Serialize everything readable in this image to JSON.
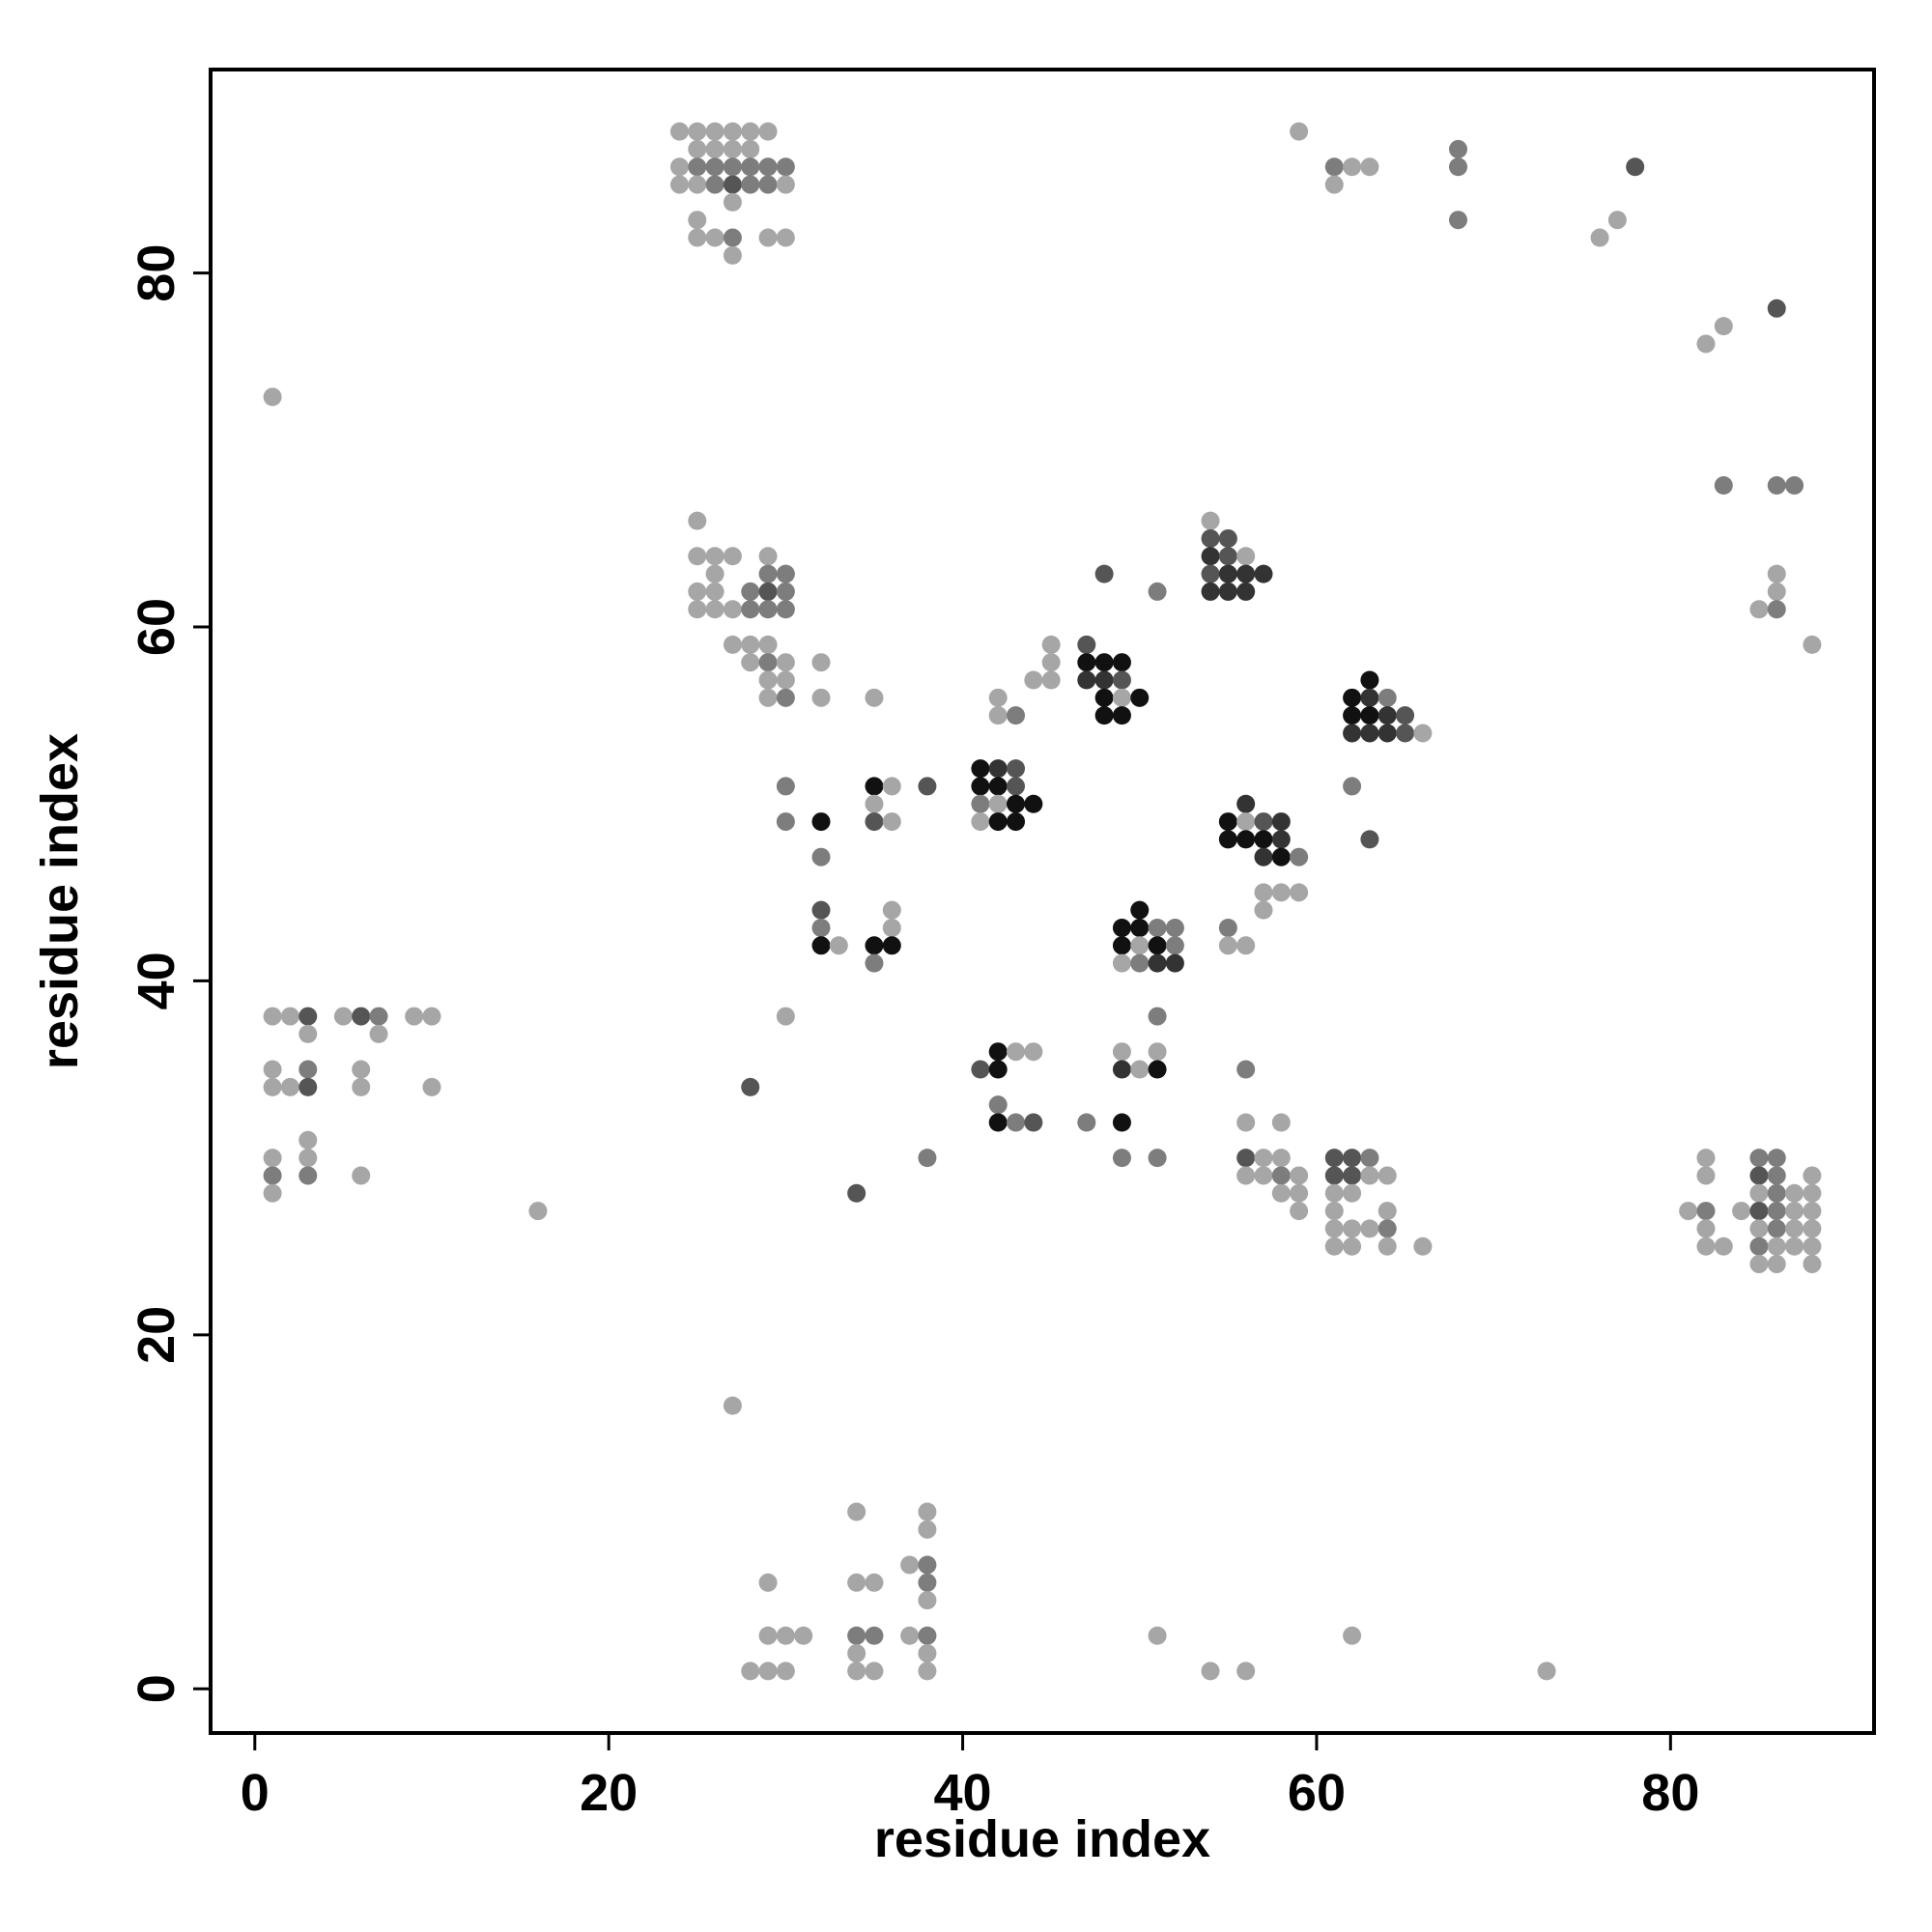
{
  "chart_data": {
    "type": "scatter",
    "title": "",
    "xlabel": "residue index",
    "ylabel": "residue index",
    "xlim": [
      -2.5,
      91.5
    ],
    "ylim": [
      -2.5,
      91.5
    ],
    "x_ticks": [
      0,
      20,
      40,
      60,
      80
    ],
    "y_ticks": [
      0,
      20,
      40,
      60,
      80
    ],
    "grid": false,
    "legend": "none",
    "point_color_scale": {
      "light": "#a6a6a6",
      "mid": "#7d7d7d",
      "dark": "#555555",
      "darker": "#333333",
      "black": "#111111"
    },
    "points": [
      [
        24,
        88,
        1
      ],
      [
        25,
        88,
        1
      ],
      [
        26,
        88,
        1
      ],
      [
        27,
        88,
        1
      ],
      [
        28,
        88,
        1
      ],
      [
        29,
        88,
        1
      ],
      [
        25,
        87,
        1
      ],
      [
        26,
        87,
        1
      ],
      [
        27,
        87,
        1
      ],
      [
        28,
        87,
        1
      ],
      [
        24,
        86,
        1
      ],
      [
        25,
        86,
        2
      ],
      [
        26,
        86,
        2
      ],
      [
        27,
        86,
        2
      ],
      [
        28,
        86,
        2
      ],
      [
        29,
        86,
        2
      ],
      [
        30,
        86,
        2
      ],
      [
        24,
        85,
        1
      ],
      [
        25,
        85,
        1
      ],
      [
        26,
        85,
        2
      ],
      [
        27,
        85,
        3
      ],
      [
        28,
        85,
        2
      ],
      [
        29,
        85,
        2
      ],
      [
        30,
        85,
        1
      ],
      [
        27,
        84,
        1
      ],
      [
        25,
        83,
        1
      ],
      [
        25,
        82,
        1
      ],
      [
        26,
        82,
        1
      ],
      [
        27,
        82,
        2
      ],
      [
        29,
        82,
        1
      ],
      [
        30,
        82,
        1
      ],
      [
        27,
        81,
        1
      ],
      [
        59,
        88,
        1
      ],
      [
        61,
        86,
        2
      ],
      [
        62,
        86,
        1
      ],
      [
        63,
        86,
        1
      ],
      [
        61,
        85,
        1
      ],
      [
        68,
        87,
        2
      ],
      [
        68,
        86,
        2
      ],
      [
        68,
        83,
        2
      ],
      [
        78,
        86,
        3
      ],
      [
        77,
        83,
        1
      ],
      [
        76,
        82,
        1
      ],
      [
        86,
        78,
        3
      ],
      [
        83,
        77,
        1
      ],
      [
        82,
        76,
        1
      ],
      [
        1,
        73,
        1
      ],
      [
        83,
        68,
        2
      ],
      [
        86,
        68,
        2
      ],
      [
        87,
        68,
        2
      ],
      [
        86,
        63,
        1
      ],
      [
        86,
        62,
        1
      ],
      [
        85,
        61,
        1
      ],
      [
        86,
        61,
        2
      ],
      [
        88,
        59,
        1
      ],
      [
        25,
        66,
        1
      ],
      [
        25,
        64,
        1
      ],
      [
        26,
        64,
        1
      ],
      [
        27,
        64,
        1
      ],
      [
        26,
        63,
        1
      ],
      [
        25,
        62,
        1
      ],
      [
        26,
        62,
        1
      ],
      [
        25,
        61,
        1
      ],
      [
        26,
        61,
        1
      ],
      [
        27,
        61,
        1
      ],
      [
        29,
        64,
        1
      ],
      [
        29,
        63,
        2
      ],
      [
        30,
        63,
        2
      ],
      [
        28,
        62,
        2
      ],
      [
        29,
        62,
        3
      ],
      [
        30,
        62,
        2
      ],
      [
        28,
        61,
        2
      ],
      [
        29,
        61,
        2
      ],
      [
        30,
        61,
        2
      ],
      [
        27,
        59,
        1
      ],
      [
        28,
        59,
        1
      ],
      [
        29,
        59,
        1
      ],
      [
        28,
        58,
        1
      ],
      [
        29,
        58,
        2
      ],
      [
        30,
        58,
        1
      ],
      [
        29,
        57,
        1
      ],
      [
        30,
        57,
        1
      ],
      [
        29,
        56,
        1
      ],
      [
        30,
        56,
        2
      ],
      [
        32,
        58,
        1
      ],
      [
        32,
        56,
        1
      ],
      [
        35,
        56,
        1
      ],
      [
        54,
        66,
        1
      ],
      [
        54,
        65,
        3
      ],
      [
        55,
        65,
        3
      ],
      [
        54,
        64,
        4
      ],
      [
        55,
        64,
        3
      ],
      [
        56,
        64,
        1
      ],
      [
        54,
        63,
        3
      ],
      [
        55,
        63,
        4
      ],
      [
        56,
        63,
        4
      ],
      [
        57,
        63,
        4
      ],
      [
        54,
        62,
        4
      ],
      [
        55,
        62,
        4
      ],
      [
        56,
        62,
        4
      ],
      [
        48,
        63,
        3
      ],
      [
        51,
        62,
        2
      ],
      [
        45,
        59,
        1
      ],
      [
        47,
        59,
        3
      ],
      [
        45,
        58,
        1
      ],
      [
        47,
        58,
        5
      ],
      [
        48,
        58,
        5
      ],
      [
        49,
        58,
        5
      ],
      [
        44,
        57,
        1
      ],
      [
        45,
        57,
        1
      ],
      [
        47,
        57,
        4
      ],
      [
        48,
        57,
        4
      ],
      [
        49,
        57,
        3
      ],
      [
        42,
        56,
        1
      ],
      [
        48,
        56,
        5
      ],
      [
        49,
        56,
        1
      ],
      [
        50,
        56,
        5
      ],
      [
        42,
        55,
        1
      ],
      [
        43,
        55,
        2
      ],
      [
        48,
        55,
        5
      ],
      [
        49,
        55,
        5
      ],
      [
        63,
        57,
        5
      ],
      [
        62,
        56,
        5
      ],
      [
        63,
        56,
        4
      ],
      [
        64,
        56,
        2
      ],
      [
        62,
        55,
        5
      ],
      [
        63,
        55,
        5
      ],
      [
        64,
        55,
        4
      ],
      [
        65,
        55,
        3
      ],
      [
        62,
        54,
        4
      ],
      [
        63,
        54,
        4
      ],
      [
        64,
        54,
        4
      ],
      [
        65,
        54,
        3
      ],
      [
        66,
        54,
        1
      ],
      [
        41,
        52,
        5
      ],
      [
        42,
        52,
        4
      ],
      [
        43,
        52,
        3
      ],
      [
        41,
        51,
        5
      ],
      [
        42,
        51,
        5
      ],
      [
        43,
        51,
        3
      ],
      [
        41,
        50,
        2
      ],
      [
        42,
        50,
        1
      ],
      [
        43,
        50,
        5
      ],
      [
        44,
        50,
        5
      ],
      [
        41,
        49,
        1
      ],
      [
        42,
        49,
        5
      ],
      [
        43,
        49,
        5
      ],
      [
        35,
        51,
        5
      ],
      [
        36,
        51,
        1
      ],
      [
        38,
        51,
        3
      ],
      [
        35,
        50,
        1
      ],
      [
        35,
        49,
        3
      ],
      [
        36,
        49,
        1
      ],
      [
        30,
        51,
        2
      ],
      [
        30,
        49,
        2
      ],
      [
        32,
        49,
        5
      ],
      [
        32,
        47,
        2
      ],
      [
        62,
        51,
        2
      ],
      [
        63,
        48,
        3
      ],
      [
        56,
        50,
        4
      ],
      [
        55,
        49,
        5
      ],
      [
        56,
        49,
        1
      ],
      [
        57,
        49,
        3
      ],
      [
        58,
        49,
        4
      ],
      [
        55,
        48,
        5
      ],
      [
        56,
        48,
        5
      ],
      [
        57,
        48,
        5
      ],
      [
        58,
        48,
        4
      ],
      [
        57,
        47,
        4
      ],
      [
        58,
        47,
        5
      ],
      [
        59,
        47,
        2
      ],
      [
        57,
        45,
        1
      ],
      [
        58,
        45,
        1
      ],
      [
        59,
        45,
        1
      ],
      [
        57,
        44,
        1
      ],
      [
        32,
        44,
        3
      ],
      [
        32,
        43,
        2
      ],
      [
        32,
        42,
        5
      ],
      [
        33,
        42,
        1
      ],
      [
        36,
        44,
        1
      ],
      [
        36,
        43,
        1
      ],
      [
        35,
        42,
        5
      ],
      [
        36,
        42,
        5
      ],
      [
        35,
        41,
        2
      ],
      [
        50,
        44,
        5
      ],
      [
        49,
        43,
        5
      ],
      [
        50,
        43,
        5
      ],
      [
        51,
        43,
        2
      ],
      [
        52,
        43,
        2
      ],
      [
        49,
        42,
        5
      ],
      [
        50,
        42,
        1
      ],
      [
        51,
        42,
        5
      ],
      [
        52,
        42,
        2
      ],
      [
        49,
        41,
        1
      ],
      [
        50,
        41,
        2
      ],
      [
        51,
        41,
        4
      ],
      [
        52,
        41,
        4
      ],
      [
        55,
        43,
        2
      ],
      [
        55,
        42,
        1
      ],
      [
        56,
        42,
        1
      ],
      [
        51,
        38,
        2
      ],
      [
        30,
        38,
        1
      ],
      [
        42,
        36,
        5
      ],
      [
        43,
        36,
        1
      ],
      [
        44,
        36,
        1
      ],
      [
        41,
        35,
        3
      ],
      [
        42,
        35,
        5
      ],
      [
        42,
        33,
        2
      ],
      [
        42,
        32,
        5
      ],
      [
        43,
        32,
        2
      ],
      [
        44,
        32,
        3
      ],
      [
        47,
        32,
        2
      ],
      [
        49,
        36,
        1
      ],
      [
        51,
        36,
        1
      ],
      [
        49,
        35,
        4
      ],
      [
        50,
        35,
        1
      ],
      [
        51,
        35,
        5
      ],
      [
        49,
        32,
        5
      ],
      [
        49,
        30,
        2
      ],
      [
        51,
        30,
        2
      ],
      [
        56,
        35,
        2
      ],
      [
        56,
        32,
        1
      ],
      [
        58,
        32,
        1
      ],
      [
        28,
        34,
        3
      ],
      [
        38,
        30,
        2
      ],
      [
        34,
        28,
        3
      ],
      [
        16,
        27,
        1
      ],
      [
        1,
        38,
        1
      ],
      [
        2,
        38,
        1
      ],
      [
        3,
        38,
        3
      ],
      [
        5,
        38,
        1
      ],
      [
        6,
        38,
        3
      ],
      [
        7,
        38,
        2
      ],
      [
        9,
        38,
        1
      ],
      [
        10,
        38,
        1
      ],
      [
        3,
        37,
        1
      ],
      [
        7,
        37,
        1
      ],
      [
        1,
        35,
        1
      ],
      [
        3,
        35,
        2
      ],
      [
        6,
        35,
        1
      ],
      [
        1,
        34,
        1
      ],
      [
        2,
        34,
        1
      ],
      [
        3,
        34,
        3
      ],
      [
        6,
        34,
        1
      ],
      [
        10,
        34,
        1
      ],
      [
        3,
        31,
        1
      ],
      [
        1,
        30,
        1
      ],
      [
        3,
        30,
        1
      ],
      [
        1,
        29,
        2
      ],
      [
        3,
        29,
        2
      ],
      [
        6,
        29,
        1
      ],
      [
        1,
        28,
        1
      ],
      [
        56,
        30,
        3
      ],
      [
        57,
        30,
        1
      ],
      [
        58,
        30,
        1
      ],
      [
        56,
        29,
        1
      ],
      [
        57,
        29,
        1
      ],
      [
        58,
        29,
        2
      ],
      [
        59,
        29,
        1
      ],
      [
        58,
        28,
        1
      ],
      [
        59,
        28,
        1
      ],
      [
        59,
        27,
        1
      ],
      [
        61,
        30,
        3
      ],
      [
        62,
        30,
        3
      ],
      [
        63,
        30,
        2
      ],
      [
        61,
        29,
        3
      ],
      [
        62,
        29,
        3
      ],
      [
        63,
        29,
        1
      ],
      [
        64,
        29,
        1
      ],
      [
        61,
        28,
        1
      ],
      [
        62,
        28,
        1
      ],
      [
        61,
        27,
        1
      ],
      [
        64,
        27,
        1
      ],
      [
        61,
        26,
        1
      ],
      [
        62,
        26,
        1
      ],
      [
        63,
        26,
        1
      ],
      [
        64,
        26,
        2
      ],
      [
        61,
        25,
        1
      ],
      [
        62,
        25,
        1
      ],
      [
        64,
        25,
        1
      ],
      [
        66,
        25,
        1
      ],
      [
        82,
        30,
        1
      ],
      [
        82,
        29,
        1
      ],
      [
        81,
        27,
        1
      ],
      [
        82,
        27,
        2
      ],
      [
        84,
        27,
        1
      ],
      [
        82,
        26,
        1
      ],
      [
        82,
        25,
        1
      ],
      [
        83,
        25,
        1
      ],
      [
        85,
        30,
        2
      ],
      [
        86,
        30,
        2
      ],
      [
        85,
        29,
        3
      ],
      [
        86,
        29,
        2
      ],
      [
        88,
        29,
        1
      ],
      [
        85,
        28,
        1
      ],
      [
        86,
        28,
        2
      ],
      [
        87,
        28,
        1
      ],
      [
        88,
        28,
        1
      ],
      [
        85,
        27,
        3
      ],
      [
        86,
        27,
        2
      ],
      [
        87,
        27,
        1
      ],
      [
        88,
        27,
        1
      ],
      [
        85,
        26,
        1
      ],
      [
        86,
        26,
        2
      ],
      [
        87,
        26,
        1
      ],
      [
        88,
        26,
        1
      ],
      [
        85,
        25,
        2
      ],
      [
        86,
        25,
        1
      ],
      [
        87,
        25,
        1
      ],
      [
        88,
        25,
        1
      ],
      [
        85,
        24,
        1
      ],
      [
        86,
        24,
        1
      ],
      [
        88,
        24,
        1
      ],
      [
        27,
        16,
        1
      ],
      [
        34,
        10,
        1
      ],
      [
        38,
        10,
        1
      ],
      [
        38,
        9,
        1
      ],
      [
        37,
        7,
        1
      ],
      [
        38,
        7,
        2
      ],
      [
        29,
        6,
        1
      ],
      [
        34,
        6,
        1
      ],
      [
        35,
        6,
        1
      ],
      [
        38,
        6,
        2
      ],
      [
        38,
        5,
        1
      ],
      [
        29,
        3,
        1
      ],
      [
        30,
        3,
        1
      ],
      [
        31,
        3,
        1
      ],
      [
        34,
        3,
        2
      ],
      [
        35,
        3,
        2
      ],
      [
        37,
        3,
        1
      ],
      [
        38,
        3,
        2
      ],
      [
        51,
        3,
        1
      ],
      [
        62,
        3,
        1
      ],
      [
        34,
        2,
        1
      ],
      [
        38,
        2,
        1
      ],
      [
        28,
        1,
        1
      ],
      [
        29,
        1,
        1
      ],
      [
        30,
        1,
        1
      ],
      [
        34,
        1,
        1
      ],
      [
        35,
        1,
        1
      ],
      [
        38,
        1,
        1
      ],
      [
        54,
        1,
        1
      ],
      [
        56,
        1,
        1
      ],
      [
        73,
        1,
        1
      ]
    ]
  }
}
